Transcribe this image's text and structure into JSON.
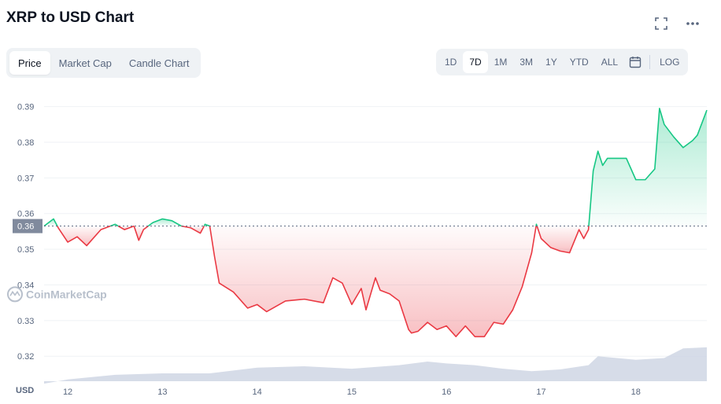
{
  "header": {
    "title": "XRP to USD Chart"
  },
  "icons": {
    "expand": "expand-icon",
    "more": "more-dots-icon",
    "calendar": "calendar-icon"
  },
  "tabs": [
    {
      "label": "Price",
      "active": true
    },
    {
      "label": "Market Cap",
      "active": false
    },
    {
      "label": "Candle Chart",
      "active": false
    }
  ],
  "ranges": [
    {
      "label": "1D",
      "active": false
    },
    {
      "label": "7D",
      "active": true
    },
    {
      "label": "1M",
      "active": false
    },
    {
      "label": "3M",
      "active": false
    },
    {
      "label": "1Y",
      "active": false
    },
    {
      "label": "YTD",
      "active": false
    },
    {
      "label": "ALL",
      "active": false
    }
  ],
  "log_label": "LOG",
  "colors": {
    "up": "#16c784",
    "down": "#ea3943",
    "volume": "#cfd6e4",
    "grid": "#eff2f5",
    "reference_badge": "#808a9d"
  },
  "chart_data": {
    "type": "area",
    "currency_label": "USD",
    "watermark": "CoinMarketCap",
    "reference_value": 0.3565,
    "reference_label": "0.36",
    "ylim": [
      0.313,
      0.393
    ],
    "xlim": [
      11.75,
      18.75
    ],
    "y_ticks": [
      {
        "value": 0.32,
        "label": "0.32"
      },
      {
        "value": 0.33,
        "label": "0.33"
      },
      {
        "value": 0.34,
        "label": "0.34"
      },
      {
        "value": 0.35,
        "label": "0.35"
      },
      {
        "value": 0.36,
        "label": "0.36"
      },
      {
        "value": 0.37,
        "label": "0.37"
      },
      {
        "value": 0.38,
        "label": "0.38"
      },
      {
        "value": 0.39,
        "label": "0.39"
      }
    ],
    "x_ticks": [
      {
        "value": 12,
        "label": "12"
      },
      {
        "value": 13,
        "label": "13"
      },
      {
        "value": 14,
        "label": "14"
      },
      {
        "value": 15,
        "label": "15"
      },
      {
        "value": 16,
        "label": "16"
      },
      {
        "value": 17,
        "label": "17"
      },
      {
        "value": 18,
        "label": "18"
      }
    ],
    "price": {
      "x": [
        11.75,
        11.85,
        11.9,
        12.0,
        12.1,
        12.2,
        12.35,
        12.5,
        12.6,
        12.7,
        12.75,
        12.8,
        12.9,
        13.0,
        13.1,
        13.2,
        13.3,
        13.4,
        13.45,
        13.5,
        13.55,
        13.6,
        13.75,
        13.85,
        13.9,
        14.0,
        14.1,
        14.3,
        14.5,
        14.7,
        14.8,
        14.9,
        15.0,
        15.1,
        15.15,
        15.25,
        15.3,
        15.4,
        15.5,
        15.6,
        15.63,
        15.7,
        15.8,
        15.9,
        16.0,
        16.1,
        16.2,
        16.3,
        16.4,
        16.5,
        16.6,
        16.7,
        16.8,
        16.9,
        16.95,
        17.0,
        17.1,
        17.2,
        17.3,
        17.4,
        17.45,
        17.5,
        17.55,
        17.6,
        17.65,
        17.7,
        17.8,
        17.9,
        18.0,
        18.1,
        18.2,
        18.25,
        18.3,
        18.4,
        18.5,
        18.6,
        18.65,
        18.7,
        18.75
      ],
      "y": [
        0.3565,
        0.3585,
        0.356,
        0.352,
        0.3535,
        0.351,
        0.3555,
        0.357,
        0.3555,
        0.3565,
        0.3525,
        0.3555,
        0.3575,
        0.3585,
        0.358,
        0.3565,
        0.356,
        0.3545,
        0.357,
        0.3565,
        0.348,
        0.3405,
        0.338,
        0.335,
        0.3335,
        0.3345,
        0.3325,
        0.3355,
        0.336,
        0.335,
        0.342,
        0.3405,
        0.3345,
        0.339,
        0.333,
        0.342,
        0.3385,
        0.3375,
        0.3355,
        0.3275,
        0.3265,
        0.327,
        0.3295,
        0.3275,
        0.3285,
        0.3255,
        0.3285,
        0.3255,
        0.3255,
        0.3295,
        0.329,
        0.333,
        0.3395,
        0.349,
        0.357,
        0.353,
        0.3505,
        0.3495,
        0.349,
        0.3555,
        0.353,
        0.3555,
        0.372,
        0.3775,
        0.3735,
        0.3755,
        0.3755,
        0.3755,
        0.3695,
        0.3695,
        0.3725,
        0.3895,
        0.385,
        0.3815,
        0.3785,
        0.3805,
        0.382,
        0.3855,
        0.389
      ]
    },
    "volume": {
      "x": [
        11.75,
        12.0,
        12.5,
        13.0,
        13.5,
        14.0,
        14.5,
        15.0,
        15.5,
        15.8,
        16.0,
        16.3,
        16.6,
        16.9,
        17.2,
        17.5,
        17.6,
        17.8,
        18.0,
        18.3,
        18.5,
        18.75
      ],
      "y": [
        0.3123,
        0.3135,
        0.3148,
        0.3152,
        0.3152,
        0.3168,
        0.3172,
        0.3165,
        0.3175,
        0.3185,
        0.318,
        0.3175,
        0.3165,
        0.3158,
        0.3163,
        0.3175,
        0.32,
        0.3195,
        0.319,
        0.3195,
        0.3222,
        0.3225
      ]
    }
  }
}
